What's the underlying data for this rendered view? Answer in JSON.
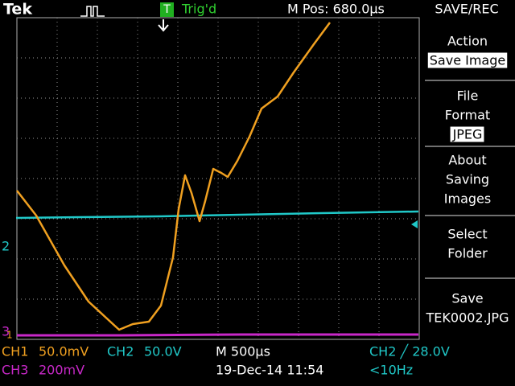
{
  "header": {
    "brand": "Tek",
    "trigger_icon": "T",
    "trigger_status": "Trig'd",
    "position": "M Pos: 680.0µs",
    "menu_title": "SAVE/REC"
  },
  "menu": [
    {
      "lines": [
        "Action"
      ],
      "selection": "Save Image"
    },
    {
      "lines": [
        "File",
        "Format"
      ],
      "selection": "JPEG"
    },
    {
      "lines": [
        "About",
        "Saving",
        "Images"
      ]
    },
    {
      "lines": [
        "Select",
        "Folder"
      ]
    },
    {
      "lines": [
        "Save",
        "TEK0002.JPG"
      ]
    }
  ],
  "markers": {
    "ch1": "1",
    "ch2": "2",
    "ch3": "3"
  },
  "status": {
    "ch1": "CH1",
    "ch1_scale": "50.0mV",
    "ch2": "CH2",
    "ch2_scale": "50.0V",
    "timebase": "M 500µs",
    "trigger": "CH2 ╱ 28.0V",
    "ch3": "CH3",
    "ch3_scale": "200mV",
    "date": "19-Dec-14 11:54",
    "frequency": "<10Hz"
  }
}
